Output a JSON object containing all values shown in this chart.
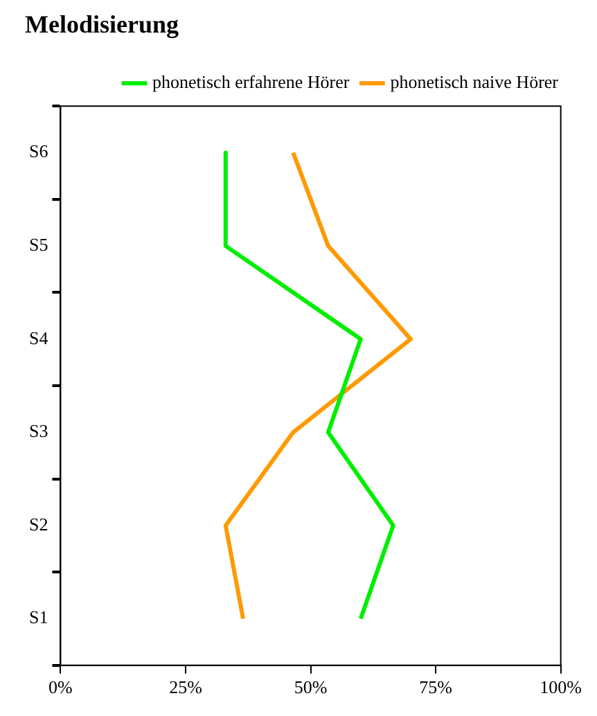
{
  "chart_data": {
    "type": "line",
    "title": "Melodisierung",
    "orientation": "horizontal",
    "categories": [
      "S6",
      "S5",
      "S4",
      "S3",
      "S2",
      "S1"
    ],
    "series": [
      {
        "name": "phonetisch erfahrene Hörer",
        "color": "#00ee00",
        "values": [
          33,
          33,
          60,
          53.5,
          66.5,
          60
        ]
      },
      {
        "name": "phonetisch naive Hörer",
        "color": "#ff9900",
        "values": [
          46.5,
          53.5,
          70,
          46.5,
          33,
          36.5
        ]
      }
    ],
    "xlim": [
      0,
      100
    ],
    "xticks": [
      {
        "value": 0,
        "label": "0%"
      },
      {
        "value": 25,
        "label": "25%"
      },
      {
        "value": 50,
        "label": "50%"
      },
      {
        "value": 75,
        "label": "75%"
      },
      {
        "value": 100,
        "label": "100%"
      }
    ],
    "grid": false,
    "legend": "top right",
    "marker": "none",
    "line_style": "solid"
  }
}
